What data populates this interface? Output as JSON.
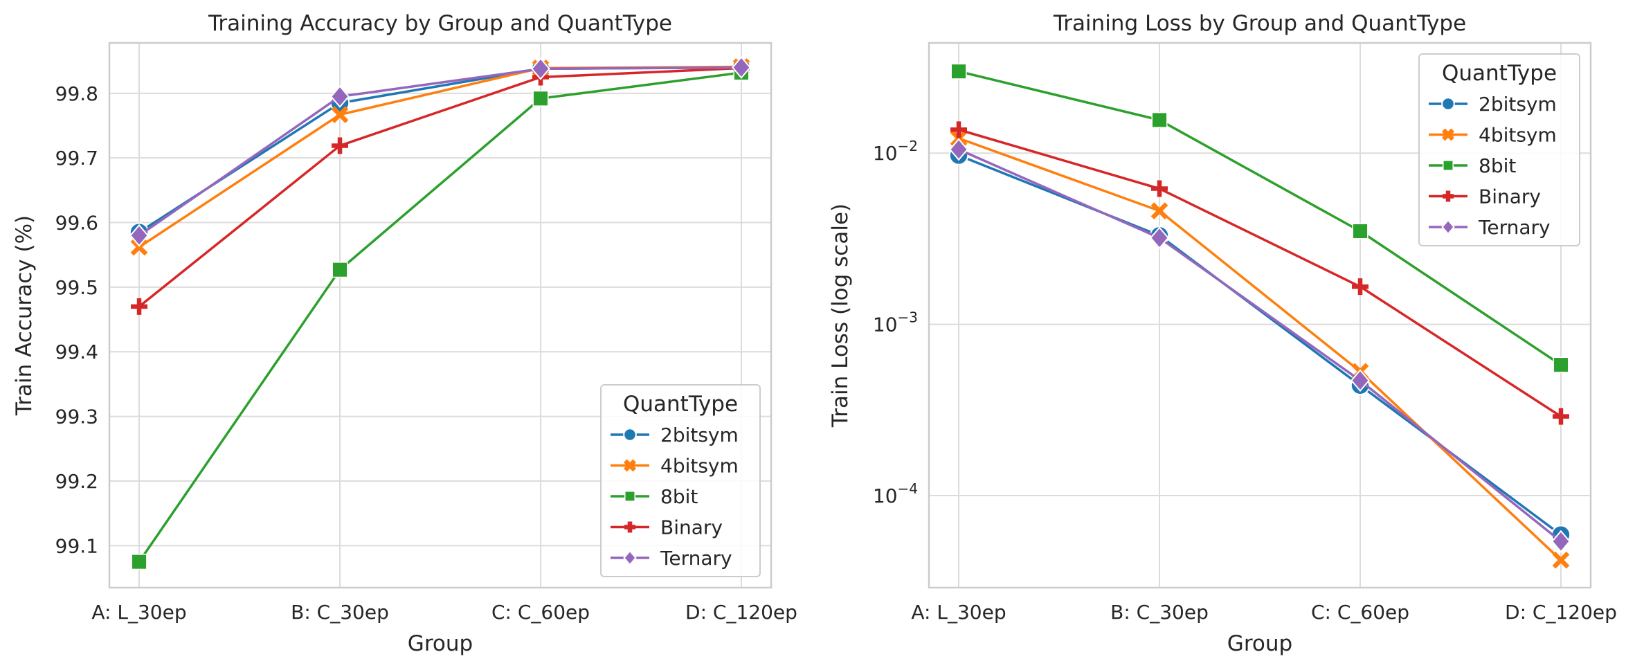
{
  "chart_data": [
    {
      "type": "line",
      "title": "Training Accuracy by Group and QuantType",
      "xlabel": "Group",
      "ylabel": "Train Accuracy (%)",
      "categories": [
        "A: L_30ep",
        "B: C_30ep",
        "C: C_60ep",
        "D: C_120ep"
      ],
      "ylim": [
        99.035,
        99.878
      ],
      "yscale": "linear",
      "yticks": [
        99.1,
        99.2,
        99.3,
        99.4,
        99.5,
        99.6,
        99.7,
        99.8
      ],
      "grid": true,
      "legend": {
        "title": "QuantType",
        "placement": "lower right"
      },
      "series": [
        {
          "name": "2bitsym",
          "color": "#1f77b4",
          "marker": "circle",
          "values": [
            99.585,
            99.785,
            99.838,
            99.84
          ]
        },
        {
          "name": "4bitsym",
          "color": "#ff7f0e",
          "marker": "x",
          "values": [
            99.562,
            99.767,
            99.839,
            99.841
          ]
        },
        {
          "name": "8bit",
          "color": "#2ca02c",
          "marker": "square",
          "values": [
            99.075,
            99.527,
            99.792,
            99.832
          ]
        },
        {
          "name": "Binary",
          "color": "#d62728",
          "marker": "plus",
          "values": [
            99.47,
            99.719,
            99.825,
            99.839
          ]
        },
        {
          "name": "Ternary",
          "color": "#9467bd",
          "marker": "diamond",
          "values": [
            99.58,
            99.795,
            99.838,
            99.84
          ]
        }
      ]
    },
    {
      "type": "line",
      "title": "Training Loss by Group and QuantType",
      "xlabel": "Group",
      "ylabel": "Train Loss (log scale)",
      "categories": [
        "A: L_30ep",
        "B: C_30ep",
        "C: C_60ep",
        "D: C_120ep"
      ],
      "ylim": [
        2.9e-05,
        0.044
      ],
      "yscale": "log",
      "yticks": [
        0.0001,
        0.001,
        0.01
      ],
      "yticklabels": [
        [
          "10",
          "−4"
        ],
        [
          "10",
          "−3"
        ],
        [
          "10",
          "−2"
        ]
      ],
      "grid": true,
      "legend": {
        "title": "QuantType",
        "placement": "upper right"
      },
      "series": [
        {
          "name": "2bitsym",
          "color": "#1f77b4",
          "marker": "circle",
          "values": [
            0.0097,
            0.0033,
            0.00044,
            5.9e-05
          ]
        },
        {
          "name": "4bitsym",
          "color": "#ff7f0e",
          "marker": "x",
          "values": [
            0.0122,
            0.0046,
            0.00053,
            4.2e-05
          ]
        },
        {
          "name": "8bit",
          "color": "#2ca02c",
          "marker": "square",
          "values": [
            0.03,
            0.0156,
            0.0035,
            0.00058
          ]
        },
        {
          "name": "Binary",
          "color": "#d62728",
          "marker": "plus",
          "values": [
            0.0137,
            0.0062,
            0.00166,
            0.00029
          ]
        },
        {
          "name": "Ternary",
          "color": "#9467bd",
          "marker": "diamond",
          "values": [
            0.0105,
            0.0032,
            0.00047,
            5.4e-05
          ]
        }
      ]
    }
  ]
}
